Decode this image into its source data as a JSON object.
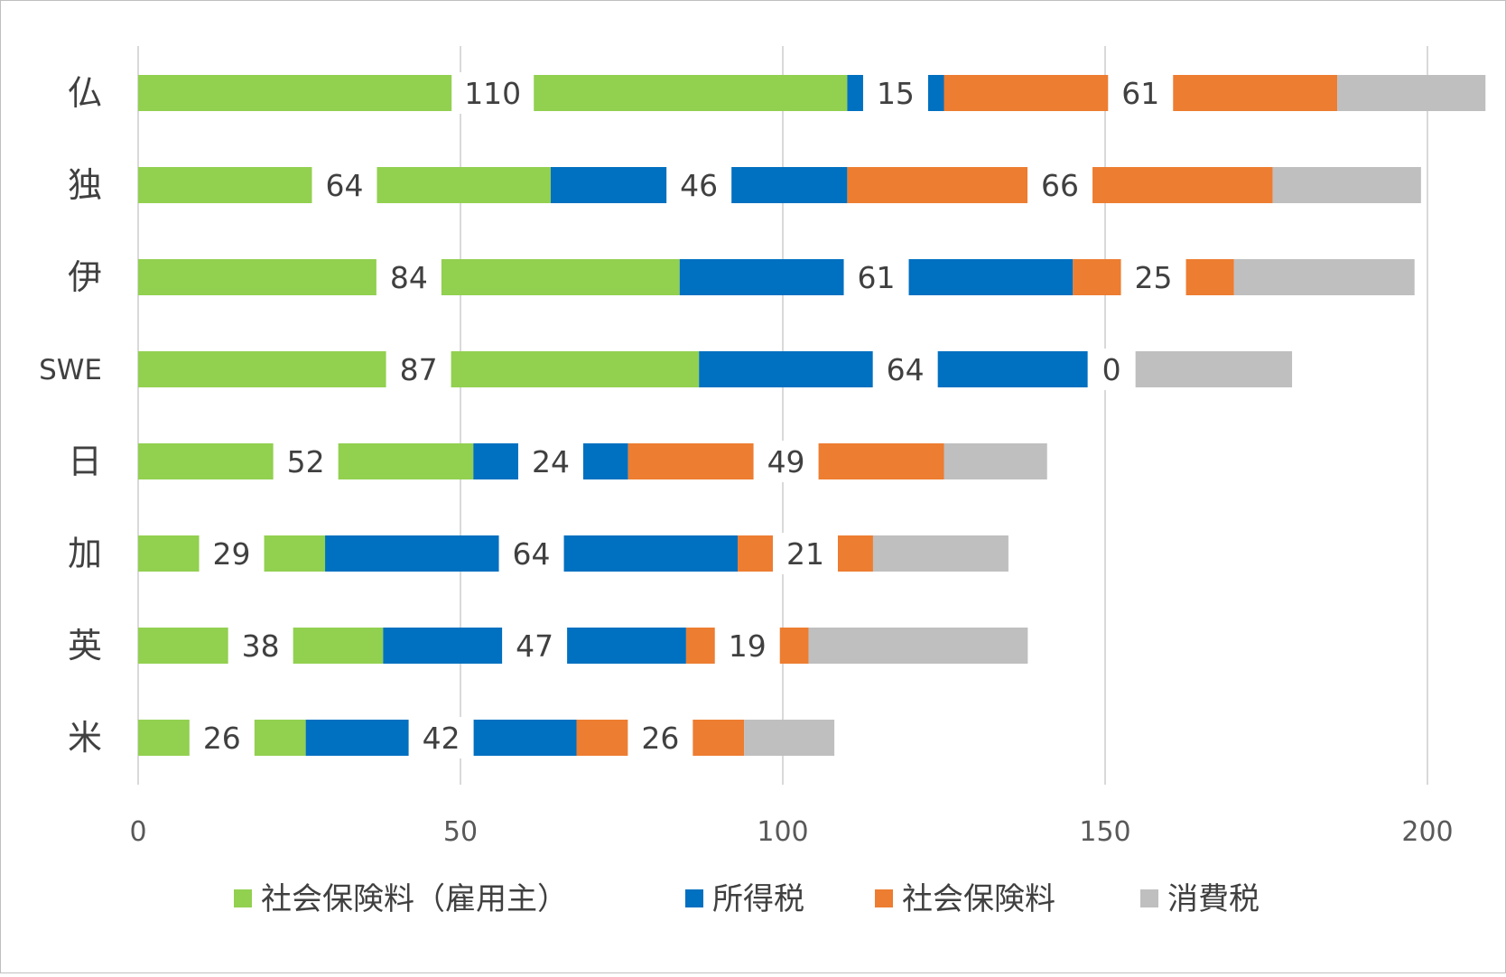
{
  "chart_data": {
    "type": "bar",
    "orientation": "horizontal",
    "stacked": true,
    "categories": [
      "仏",
      "独",
      "伊",
      "SWE",
      "日",
      "加",
      "英",
      "米"
    ],
    "series": [
      {
        "name": "社会保険料（雇用主）",
        "color": "#92d050",
        "values": [
          110,
          64,
          84,
          87,
          52,
          29,
          38,
          26
        ]
      },
      {
        "name": "所得税",
        "color": "#0070c0",
        "values": [
          15,
          46,
          61,
          64,
          24,
          64,
          47,
          42
        ]
      },
      {
        "name": "社会保険料",
        "color": "#ed7d31",
        "values": [
          61,
          66,
          25,
          0,
          49,
          21,
          19,
          26
        ]
      },
      {
        "name": "消費税",
        "color": "#bfbfbf",
        "values": [
          23,
          23,
          28,
          28,
          16,
          21,
          34,
          14
        ]
      }
    ],
    "labeled_series": [
      "社会保険料（雇用主）",
      "所得税",
      "社会保険料"
    ],
    "xlim": [
      0,
      200
    ],
    "xticks": [
      0,
      50,
      100,
      150,
      200
    ],
    "grid": "vertical",
    "legend_position": "bottom"
  }
}
